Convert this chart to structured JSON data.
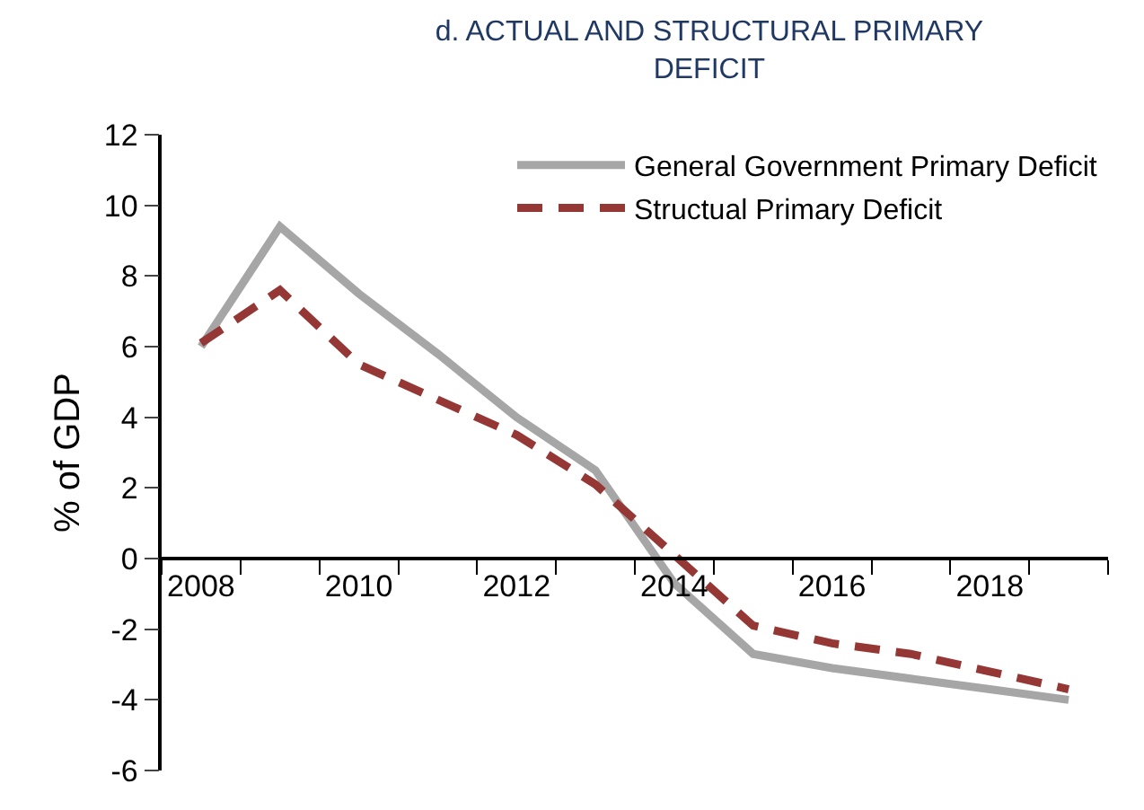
{
  "chart_data": {
    "type": "line",
    "title": "d. ACTUAL AND STRUCTURAL PRIMARY DEFICIT",
    "ylabel": "% of GDP",
    "categories": [
      "2008",
      null,
      "2010",
      null,
      "2012",
      null,
      "2014",
      null,
      "2016",
      null,
      "2018",
      null
    ],
    "series": [
      {
        "name": "General Government Primary Deficit",
        "color": "#a6a6a6",
        "line_style": "solid",
        "values": [
          6.0,
          9.4,
          7.5,
          5.8,
          4.0,
          2.5,
          -0.7,
          -2.7,
          -3.1,
          -3.4,
          -3.7,
          -4.0
        ]
      },
      {
        "name": "Structual Primary Deficit",
        "color": "#953735",
        "line_style": "dashed",
        "values": [
          6.1,
          7.6,
          5.5,
          4.5,
          3.5,
          2.1,
          0.1,
          -1.9,
          -2.4,
          -2.7,
          -3.2,
          -3.7
        ]
      }
    ],
    "ylim": [
      -6,
      12
    ],
    "yticks": [
      -6,
      -4,
      -2,
      0,
      2,
      4,
      6,
      8,
      10,
      12
    ],
    "legend": "top right",
    "marker": "none"
  }
}
